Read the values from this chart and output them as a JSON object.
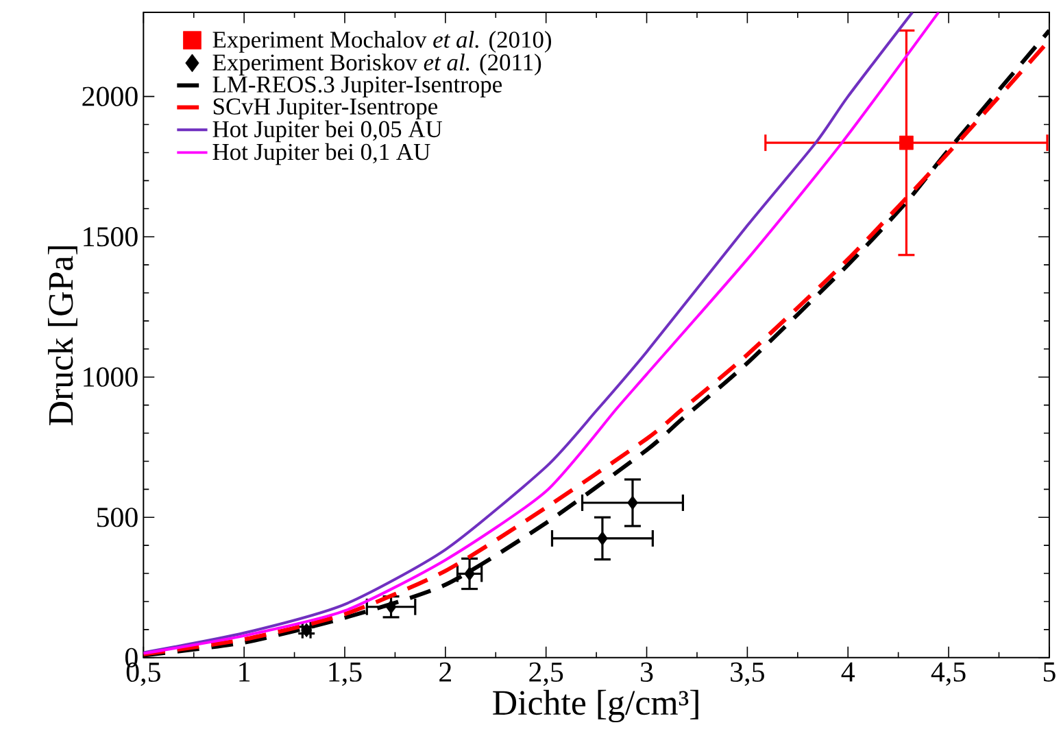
{
  "chart_data": {
    "type": "line",
    "xlabel": "Dichte  [g/cm³]",
    "ylabel": "Druck  [GPa]",
    "xlim": [
      0.5,
      5
    ],
    "ylim": [
      0,
      2300
    ],
    "xticks": [
      {
        "value": 0.5,
        "label": "0,5"
      },
      1,
      {
        "value": 1.5,
        "label": "1,5"
      },
      2,
      {
        "value": 2.5,
        "label": "2,5"
      },
      3,
      {
        "value": 3.5,
        "label": "3,5"
      },
      4,
      {
        "value": 4.5,
        "label": "4,5"
      },
      5
    ],
    "yticks": [
      0,
      500,
      1000,
      1500,
      2000
    ],
    "legend": "top left",
    "series": [
      {
        "name": "Experiment Mochalov *et al.* (2010)",
        "type": "scatter",
        "marker": "square",
        "color": "#ff0000",
        "x": [
          4.29
        ],
        "values": [
          1835
        ],
        "xerrors": [
          0.7
        ],
        "errors": [
          400
        ]
      },
      {
        "name": "Experiment Boriskov *et al.* (2011)",
        "type": "scatter",
        "marker": "diamond",
        "color": "#000000",
        "x": [
          1.31,
          1.73,
          2.12,
          2.78,
          2.93
        ],
        "values": [
          98,
          181,
          299,
          425,
          552
        ],
        "xerrors": [
          0.02,
          0.12,
          0.06,
          0.25,
          0.25
        ],
        "errors": [
          12,
          37,
          54,
          75,
          83
        ]
      },
      {
        "name": "LM-REOS.3 Jupiter-Isentrope",
        "line_style": "dashed",
        "color": "#000000",
        "x": [
          0.5,
          1,
          1.5,
          2,
          2.5,
          3,
          3.18,
          3.5,
          4,
          4.29,
          4.5,
          5
        ],
        "values": [
          8,
          54,
          142,
          260,
          480,
          740,
          853,
          1050,
          1400,
          1623,
          1810,
          2235
        ]
      },
      {
        "name": "SCvH Jupiter-Isentrope",
        "line_style": "dashed",
        "color": "#ff0000",
        "x": [
          0.5,
          1,
          1.5,
          2,
          2.5,
          3,
          3.18,
          3.5,
          4,
          4.5,
          5
        ],
        "values": [
          12,
          65,
          155,
          309,
          535,
          780,
          887,
          1080,
          1420,
          1800,
          2200
        ]
      },
      {
        "name": "Hot Jupiter bei 0,05 AU",
        "line_style": "solid",
        "color": "#7030c0",
        "x": [
          0.5,
          1,
          1.5,
          2,
          2.5,
          2.75,
          3,
          3.5,
          3.84,
          4,
          4.32
        ],
        "values": [
          18,
          88,
          190,
          385,
          680,
          880,
          1090,
          1540,
          1835,
          2000,
          2300
        ]
      },
      {
        "name": "Hot Jupiter bei 0,1 AU",
        "line_style": "solid",
        "color": "#ff00ff",
        "x": [
          0.5,
          1,
          1.5,
          2,
          2.5,
          2.85,
          3,
          3.5,
          3.97,
          4.45
        ],
        "values": [
          15,
          78,
          167,
          348,
          593,
          887,
          1010,
          1420,
          1835,
          2300
        ]
      }
    ]
  }
}
